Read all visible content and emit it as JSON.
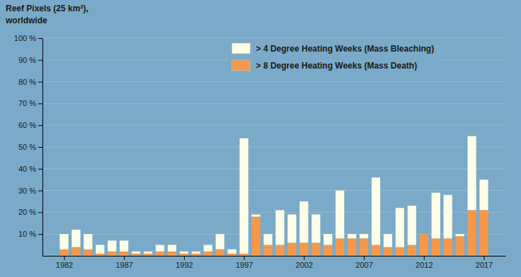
{
  "chart_data": {
    "type": "bar",
    "stacked": true,
    "ylabel": [
      "Reef Pixels (25 km²),",
      "worldwide"
    ],
    "x": [
      1982,
      1983,
      1984,
      1985,
      1986,
      1987,
      1988,
      1989,
      1990,
      1991,
      1992,
      1993,
      1994,
      1995,
      1996,
      1997,
      1998,
      1999,
      2000,
      2001,
      2002,
      2003,
      2004,
      2005,
      2006,
      2007,
      2008,
      2009,
      2010,
      2011,
      2012,
      2013,
      2014,
      2015,
      2016,
      2017
    ],
    "series": [
      {
        "name": "> 8 Degree Heating Weeks (Mass Death)",
        "color": "#f5984a",
        "values": [
          3,
          4,
          3,
          1,
          2,
          2,
          1,
          1,
          2,
          2,
          1,
          1,
          2,
          3,
          1,
          1,
          18,
          5,
          5,
          6,
          6,
          6,
          5,
          8,
          8,
          8,
          5,
          4,
          4,
          5,
          10,
          8,
          8,
          9,
          21,
          21
        ]
      },
      {
        "name": "> 4 Degree Heating Weeks (Mass Bleaching)",
        "color": "#fffee8",
        "values": [
          7,
          8,
          7,
          4,
          5,
          5,
          1,
          1,
          3,
          3,
          1,
          1,
          3,
          7,
          2,
          53,
          1,
          5,
          16,
          13,
          19,
          13,
          5,
          22,
          2,
          2,
          31,
          6,
          18,
          18,
          0,
          21,
          20,
          1,
          34,
          14
        ]
      }
    ],
    "xlim": [
      1980.2,
      2018.8
    ],
    "xticks": [
      1982,
      1987,
      1992,
      1997,
      2002,
      2007,
      2012,
      2017
    ],
    "ylim": [
      0,
      100
    ],
    "yticks": [
      {
        "value": 10,
        "label": "10 %"
      },
      {
        "value": 20,
        "label": "20 %"
      },
      {
        "value": 30,
        "label": "30 %"
      },
      {
        "value": 40,
        "label": "40 %"
      },
      {
        "value": 50,
        "label": "50 %"
      },
      {
        "value": 60,
        "label": "60 %"
      },
      {
        "value": 70,
        "label": "70 %"
      },
      {
        "value": 80,
        "label": "80 %"
      },
      {
        "value": 90,
        "label": "90 %"
      },
      {
        "value": 100,
        "label": "100 %"
      }
    ],
    "grid": true,
    "legend": "top"
  }
}
